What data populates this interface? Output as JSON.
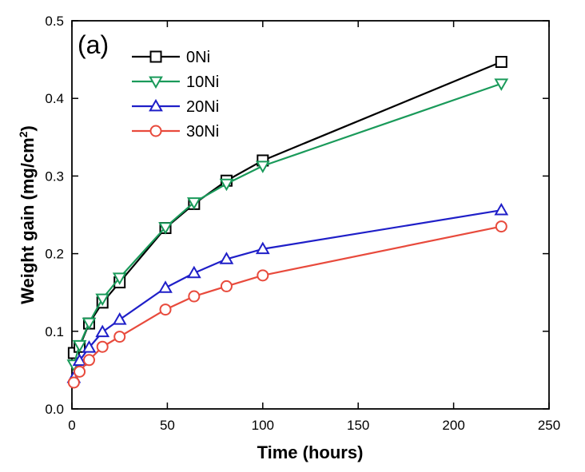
{
  "chart_data": {
    "type": "line",
    "panel_label": "(a)",
    "xlabel": "Time (hours)",
    "ylabel": {
      "main": "Weight gain (mg/cm",
      "sup": "2",
      "end": ")"
    },
    "xlim": [
      0,
      250
    ],
    "ylim": [
      0,
      0.5
    ],
    "xticks": [
      0,
      50,
      100,
      150,
      200,
      250
    ],
    "yticks": [
      0.0,
      0.1,
      0.2,
      0.3,
      0.4,
      0.5
    ],
    "xtick_labels": [
      "0",
      "50",
      "100",
      "150",
      "200",
      "250"
    ],
    "ytick_labels": [
      "0.0",
      "0.1",
      "0.2",
      "0.3",
      "0.4",
      "0.5"
    ],
    "grid": false,
    "legend_position": "top-left",
    "series": [
      {
        "name": "0Ni",
        "color": "#000000",
        "marker": "square",
        "x": [
          1,
          4,
          9,
          16,
          25,
          49,
          64,
          81,
          100,
          225
        ],
        "y": [
          0.072,
          0.08,
          0.11,
          0.137,
          0.163,
          0.233,
          0.264,
          0.294,
          0.32,
          0.447
        ]
      },
      {
        "name": "10Ni",
        "color": "#1a9a5a",
        "marker": "triangle-down",
        "x": [
          1,
          4,
          9,
          16,
          25,
          49,
          64,
          81,
          100,
          225
        ],
        "y": [
          0.057,
          0.082,
          0.111,
          0.142,
          0.169,
          0.234,
          0.266,
          0.29,
          0.313,
          0.419
        ]
      },
      {
        "name": "20Ni",
        "color": "#1f1fc8",
        "marker": "triangle-up",
        "x": [
          1,
          4,
          9,
          16,
          25,
          49,
          64,
          81,
          100,
          225
        ],
        "y": [
          0.04,
          0.062,
          0.079,
          0.099,
          0.115,
          0.156,
          0.175,
          0.193,
          0.206,
          0.256
        ]
      },
      {
        "name": "30Ni",
        "color": "#e84a3c",
        "marker": "circle",
        "x": [
          1,
          4,
          9,
          16,
          25,
          49,
          64,
          81,
          100,
          225
        ],
        "y": [
          0.034,
          0.048,
          0.063,
          0.08,
          0.093,
          0.128,
          0.145,
          0.158,
          0.172,
          0.235
        ]
      }
    ]
  }
}
